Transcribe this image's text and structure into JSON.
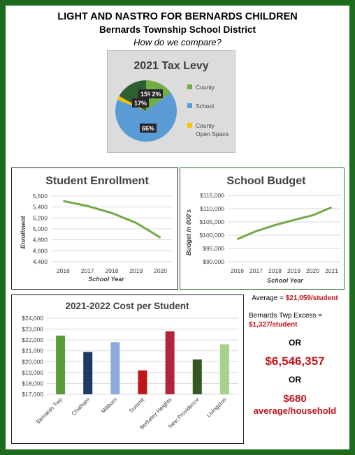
{
  "header": {
    "line1": "LIGHT AND NASTRO FOR BERNARDS CHILDREN",
    "line2": "Bernards Township School District",
    "line3": "How do we compare?"
  },
  "colors": {
    "frame": "#1e6b1e",
    "line_green": "#74a84a",
    "county": "#70ad47",
    "school": "#5b9bd5",
    "open_space": "#ffc000"
  },
  "chart_data": [
    {
      "type": "pie",
      "title": "2021 Tax Levy",
      "slices": [
        {
          "name": "County",
          "value": 15,
          "label": "15%"
        },
        {
          "name": "School",
          "value": 66,
          "label": "66%"
        },
        {
          "name": "County Open Space",
          "value": 2,
          "label": "2%"
        },
        {
          "name": "",
          "value": 17,
          "label": "17%"
        }
      ],
      "legend": [
        {
          "name": "County",
          "color": "#70ad47"
        },
        {
          "name": "School",
          "color": "#5b9bd5"
        },
        {
          "name": "County Open Space",
          "color": "#ffc000"
        }
      ],
      "legend_position": "right"
    },
    {
      "type": "line",
      "title": "Student Enrollment",
      "xlabel": "School Year",
      "ylabel": "Enrollment",
      "x": [
        2016,
        2017,
        2018,
        2019,
        2020
      ],
      "values": [
        5510,
        5420,
        5290,
        5110,
        4840
      ],
      "ylim": [
        4400,
        5600
      ],
      "yticks": [
        "4,400",
        "4,600",
        "4,800",
        "5,000",
        "5,200",
        "5,400",
        "5,600"
      ],
      "grid": true
    },
    {
      "type": "line",
      "title": "School Budget",
      "xlabel": "School Year",
      "ylabel": "Budget in 000's",
      "x": [
        2016,
        2017,
        2018,
        2019,
        2020,
        2021
      ],
      "values": [
        98500,
        101500,
        103800,
        105700,
        107500,
        110500
      ],
      "ylim": [
        90000,
        115000
      ],
      "yticks": [
        "$90,000",
        "$95,000",
        "$100,000",
        "$105,000",
        "$110,000",
        "$115,000"
      ],
      "grid": true
    },
    {
      "type": "bar",
      "title": "2021-2022 Cost per Student",
      "categories": [
        "Bernards Twp",
        "Chatham",
        "Millburn",
        "Summit",
        "Berkeley Heights",
        "New Providence",
        "Livingston"
      ],
      "values": [
        22400,
        20900,
        21800,
        19200,
        22800,
        20200,
        21600
      ],
      "colors": [
        "#5c9a3a",
        "#1f3a66",
        "#8eaadb",
        "#c0151b",
        "#b3243a",
        "#375623",
        "#a9d18e"
      ],
      "ylim": [
        17000,
        24000
      ],
      "yticks": [
        "$17,000",
        "$18,000",
        "$19,000",
        "$20,000",
        "$21,000",
        "$22,000",
        "$23,000",
        "$24,000"
      ],
      "grid": true
    }
  ],
  "sidebar": {
    "average_label": "Average = ",
    "average_value": "$21,059/student",
    "excess_label": "Bernards Twp Excess =",
    "excess_value": "$1,327/student",
    "or1": "OR",
    "total": "$6,546,357",
    "or2": "OR",
    "household_value": "$680",
    "household_label": "average/household"
  }
}
